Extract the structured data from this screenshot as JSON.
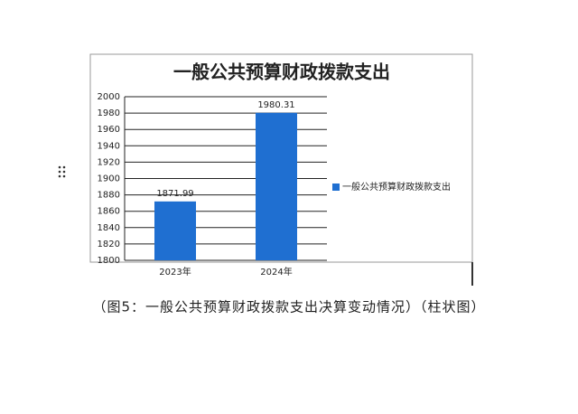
{
  "chart_data": {
    "type": "bar",
    "title": "一般公共预算财政拨款支出",
    "categories": [
      "2023年",
      "2024年"
    ],
    "series": [
      {
        "name": "一般公共预算财政拨款支出",
        "color": "#1f6fd1",
        "values": [
          1871.99,
          1980.31
        ]
      }
    ],
    "ylim": [
      1800,
      2000
    ],
    "yticks": [
      1800,
      1820,
      1840,
      1860,
      1880,
      1900,
      1920,
      1940,
      1960,
      1980,
      2000
    ],
    "grid": true,
    "legend": "right"
  },
  "caption": "（图5：一般公共预算财政拨款支出决算变动情况）（柱状图）"
}
